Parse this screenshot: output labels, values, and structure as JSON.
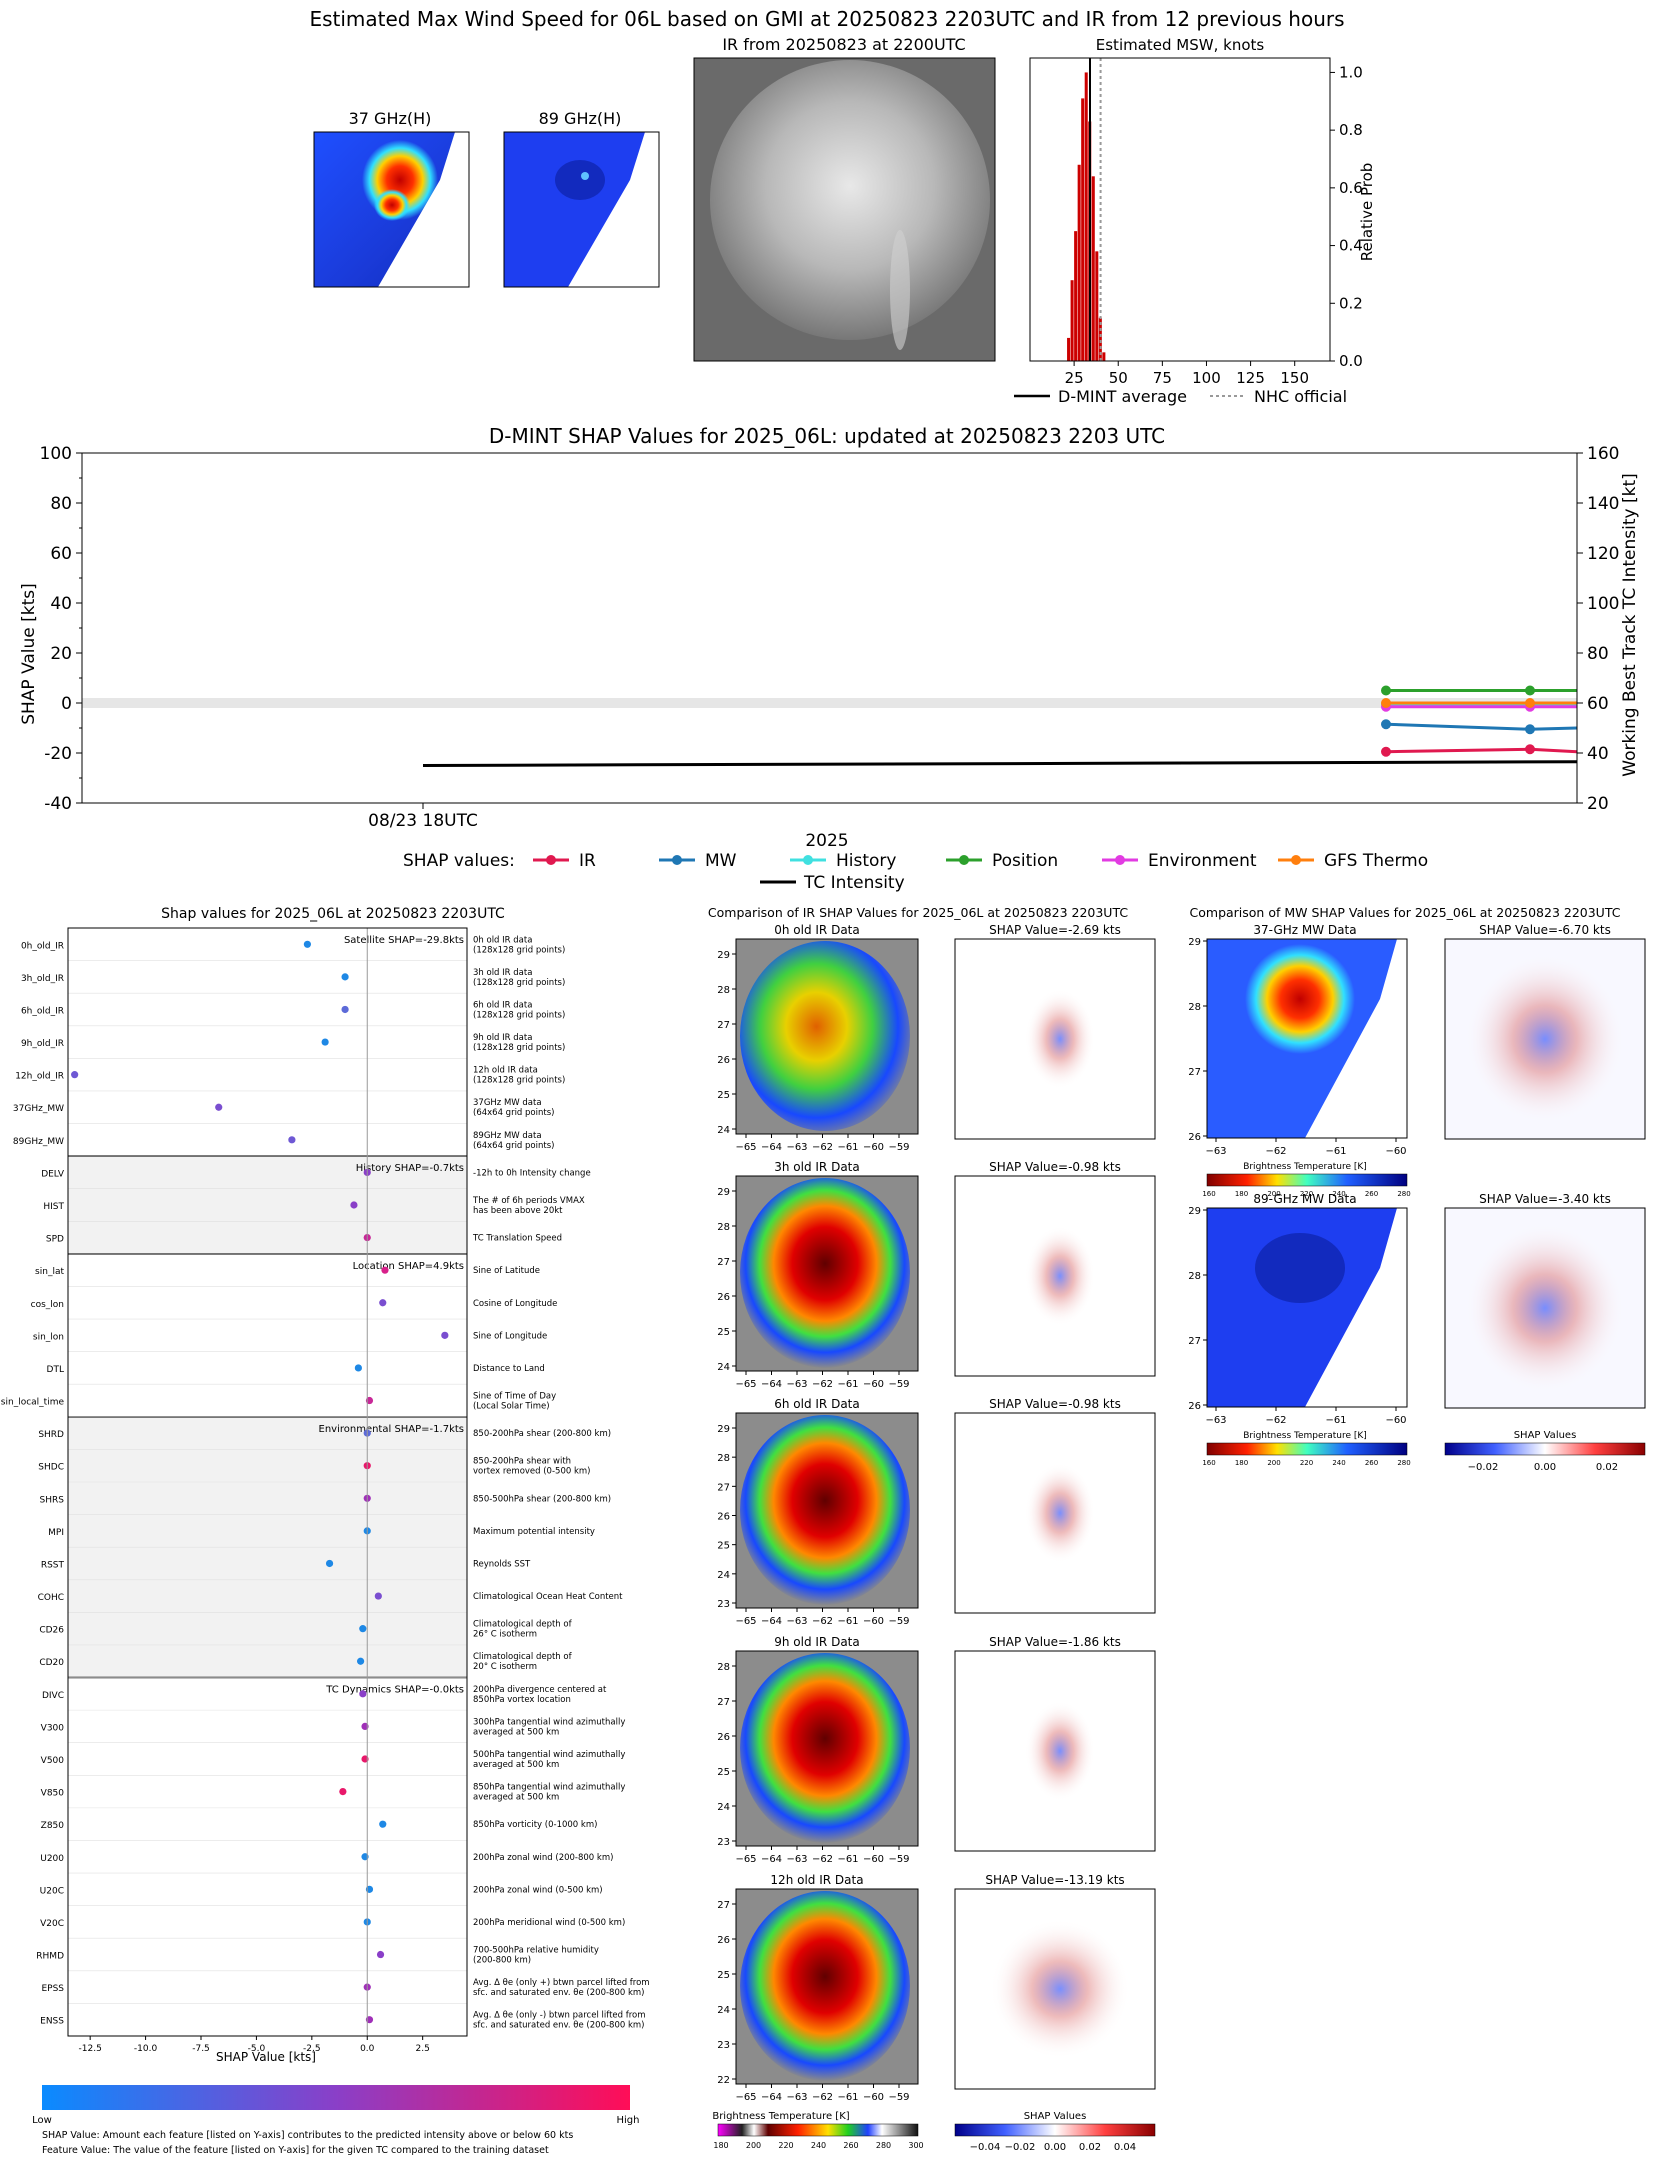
{
  "header": {
    "main_title": "Estimated Max Wind Speed for 06L based on GMI at 20250823 2203UTC and IR from 12 previous hours",
    "panel_37": "37 GHz(H)",
    "panel_89": "89 GHz(H)",
    "panel_ir": "IR from 20250823 at 2200UTC",
    "panel_msw": "Estimated MSW, knots"
  },
  "colors": {
    "ir": "#e0194f",
    "mw": "#1f77b4",
    "history": "#40e0e0",
    "position": "#2ca02c",
    "environment": "#e23be2",
    "gfs": "#ff7f0e",
    "intensity": "#000000",
    "histbar": "#cc0000"
  },
  "chart_data": [
    {
      "id": "msw",
      "type": "bar",
      "title": "Estimated MSW, knots",
      "ylabel": "Relative Prob",
      "xlim": [
        0,
        170
      ],
      "ylim": [
        0,
        1.05
      ],
      "xticks": [
        25,
        50,
        75,
        100,
        125,
        150
      ],
      "yticks": [
        0.0,
        0.2,
        0.4,
        0.6,
        0.8,
        1.0
      ],
      "bins": [
        {
          "x": 22,
          "y": 0.08
        },
        {
          "x": 24,
          "y": 0.28
        },
        {
          "x": 26,
          "y": 0.45
        },
        {
          "x": 28,
          "y": 0.68
        },
        {
          "x": 30,
          "y": 0.91
        },
        {
          "x": 32,
          "y": 1.0
        },
        {
          "x": 34,
          "y": 0.83
        },
        {
          "x": 36,
          "y": 0.64
        },
        {
          "x": 38,
          "y": 0.38
        },
        {
          "x": 40,
          "y": 0.15
        },
        {
          "x": 42,
          "y": 0.03
        }
      ],
      "dmint_average": 34,
      "nhc_official": 40,
      "legend": [
        "D-MINT average",
        "NHC official"
      ]
    },
    {
      "id": "shap_ts",
      "type": "line",
      "title": "D-MINT SHAP Values for 2025_06L: updated at 20250823 2203 UTC",
      "ylabel": "SHAP Value [kts]",
      "y2label": "Working Best Track TC Intensity [kt]",
      "xlabel": "2025",
      "xtick": "08/23 18UTC",
      "ylim": [
        -40,
        100
      ],
      "y2lim": [
        20,
        160
      ],
      "yticks": [
        -40,
        -20,
        0,
        20,
        40,
        60,
        80,
        100
      ],
      "y2ticks": [
        20,
        40,
        60,
        80,
        100,
        120,
        140,
        160
      ],
      "legend_title": "SHAP values:",
      "series": [
        {
          "name": "IR",
          "values": [
            -19.5,
            -18.5,
            -19.5
          ]
        },
        {
          "name": "MW",
          "values": [
            -8.5,
            -10.5,
            -10.0
          ]
        },
        {
          "name": "History",
          "values": [
            -0.5,
            -0.5,
            -0.5
          ]
        },
        {
          "name": "Position",
          "values": [
            5,
            5,
            5
          ]
        },
        {
          "name": "Environment",
          "values": [
            -1.5,
            -1.5,
            -1.5
          ]
        },
        {
          "name": "GFS Thermo",
          "values": [
            0,
            0,
            0
          ]
        }
      ],
      "intensity_label": "TC Intensity",
      "intensity_start": 35,
      "intensity_end": 36.5
    },
    {
      "id": "shap_features",
      "type": "scatter",
      "title": "Shap values for 2025_06L at 20250823 2203UTC",
      "xlabel": "SHAP Value [kts]",
      "xlim": [
        -13.5,
        4.5
      ],
      "xticks": [
        "-12.5",
        "-10.0",
        "-7.5",
        "-5.0",
        "-2.5",
        "0.0",
        "2.5"
      ],
      "colorbar_low": "Low",
      "colorbar_high": "High",
      "groups": [
        {
          "label": "Satellite SHAP=-29.8kts",
          "start": 0,
          "count": 7
        },
        {
          "label": "History SHAP=-0.7kts",
          "start": 7,
          "count": 3
        },
        {
          "label": "Location SHAP=4.9kts",
          "start": 10,
          "count": 5
        },
        {
          "label": "Environmental SHAP=-1.7kts",
          "start": 15,
          "count": 8
        },
        {
          "label": "TC Dynamics SHAP=-0.0kts",
          "start": 23,
          "count": 11
        }
      ],
      "features": [
        {
          "name": "0h_old_IR",
          "value": -2.7,
          "color": "#1e88e5",
          "desc": "0h old IR data\n(128x128 grid points)"
        },
        {
          "name": "3h_old_IR",
          "value": -1.0,
          "color": "#1e88e5",
          "desc": "3h old IR data\n(128x128 grid points)"
        },
        {
          "name": "6h_old_IR",
          "value": -1.0,
          "color": "#5c6ad8",
          "desc": "6h old IR data\n(128x128 grid points)"
        },
        {
          "name": "9h_old_IR",
          "value": -1.9,
          "color": "#1e88e5",
          "desc": "9h old IR data\n(128x128 grid points)"
        },
        {
          "name": "12h_old_IR",
          "value": -13.2,
          "color": "#6e58d4",
          "desc": "12h old IR data\n(128x128 grid points)"
        },
        {
          "name": "37GHz_MW",
          "value": -6.7,
          "color": "#7a4ed0",
          "desc": "37GHz MW data\n(64x64 grid points)"
        },
        {
          "name": "89GHz_MW",
          "value": -3.4,
          "color": "#6e58d4",
          "desc": "89GHz MW data\n(64x64 grid points)"
        },
        {
          "name": "DELV",
          "value": 0.0,
          "color": "#8a3fc8",
          "desc": "-12h to 0h Intensity change"
        },
        {
          "name": "HIST",
          "value": -0.6,
          "color": "#8a3fc8",
          "desc": "The # of 6h periods VMAX\nhas been above 20kt"
        },
        {
          "name": "SPD",
          "value": 0.0,
          "color": "#c82898",
          "desc": "TC Translation Speed"
        },
        {
          "name": "sin_lat",
          "value": 0.8,
          "color": "#d8208a",
          "desc": "Sine of Latitude"
        },
        {
          "name": "cos_lon",
          "value": 0.7,
          "color": "#7a4ed0",
          "desc": "Cosine of Longitude"
        },
        {
          "name": "sin_lon",
          "value": 3.5,
          "color": "#7a4ed0",
          "desc": "Sine of Longitude"
        },
        {
          "name": "DTL",
          "value": -0.4,
          "color": "#1e88e5",
          "desc": "Distance to Land"
        },
        {
          "name": "sin_local_time",
          "value": 0.1,
          "color": "#c82898",
          "desc": "Sine of Time of Day\n(Local Solar Time)"
        },
        {
          "name": "SHRD",
          "value": 0.0,
          "color": "#5c6ad8",
          "desc": "850-200hPa shear (200-800 km)"
        },
        {
          "name": "SHDC",
          "value": 0.0,
          "color": "#e8186a",
          "desc": "850-200hPa shear with\nvortex removed (0-500 km)"
        },
        {
          "name": "SHRS",
          "value": 0.0,
          "color": "#a030b8",
          "desc": "850-500hPa shear (200-800 km)"
        },
        {
          "name": "MPI",
          "value": 0.0,
          "color": "#1e88e5",
          "desc": "Maximum potential intensity"
        },
        {
          "name": "RSST",
          "value": -1.7,
          "color": "#1e88e5",
          "desc": "Reynolds SST"
        },
        {
          "name": "COHC",
          "value": 0.5,
          "color": "#7a4ed0",
          "desc": "Climatological Ocean Heat Content"
        },
        {
          "name": "CD26",
          "value": -0.2,
          "color": "#1e88e5",
          "desc": "Climatological depth of\n26° C isotherm"
        },
        {
          "name": "CD20",
          "value": -0.3,
          "color": "#1e88e5",
          "desc": "Climatological depth of\n20° C isotherm"
        },
        {
          "name": "DIVC",
          "value": -0.2,
          "color": "#8a3fc8",
          "desc": "200hPa divergence centered at\n850hPa vortex location"
        },
        {
          "name": "V300",
          "value": -0.1,
          "color": "#a030b8",
          "desc": "300hPa tangential wind azimuthally\naveraged at 500 km"
        },
        {
          "name": "V500",
          "value": -0.1,
          "color": "#e8186a",
          "desc": "500hPa tangential wind azimuthally\naveraged at 500 km"
        },
        {
          "name": "V850",
          "value": -1.1,
          "color": "#e8186a",
          "desc": "850hPa tangential wind azimuthally\naveraged at 500 km"
        },
        {
          "name": "Z850",
          "value": 0.7,
          "color": "#1e88e5",
          "desc": "850hPa vorticity (0-1000 km)"
        },
        {
          "name": "U200",
          "value": -0.1,
          "color": "#1e88e5",
          "desc": "200hPa zonal wind (200-800 km)"
        },
        {
          "name": "U20C",
          "value": 0.1,
          "color": "#1e88e5",
          "desc": "200hPa zonal wind (0-500 km)"
        },
        {
          "name": "V20C",
          "value": 0.0,
          "color": "#1e88e5",
          "desc": "200hPa meridional wind (0-500 km)"
        },
        {
          "name": "RHMD",
          "value": 0.6,
          "color": "#8a3fc8",
          "desc": "700-500hPa relative humidity\n(200-800 km)"
        },
        {
          "name": "EPSS",
          "value": 0.0,
          "color": "#a030b8",
          "desc": "Avg. Δ θe (only +) btwn parcel lifted from\nsfc. and saturated env. θe (200-800 km)"
        },
        {
          "name": "ENSS",
          "value": 0.1,
          "color": "#a030b8",
          "desc": "Avg. Δ θe (only -) btwn parcel lifted from\nsfc. and saturated env. θe (200-800 km)"
        }
      ],
      "footnote_1": "SHAP Value: Amount each feature [listed on Y-axis] contributes to the predicted intensity above or below 60 kts",
      "footnote_2": "Feature Value: The value of the feature [listed on Y-axis] for the given TC compared to the training dataset"
    }
  ],
  "ir_panel": {
    "title": "Comparison of IR SHAP Values for 2025_06L at 20250823 2203UTC",
    "rows": [
      {
        "img": "0h old IR Data",
        "shap": "SHAP Value=-2.69 kts",
        "yticks": [
          "29",
          "28",
          "27",
          "26",
          "25",
          "24"
        ]
      },
      {
        "img": "3h old IR Data",
        "shap": "SHAP Value=-0.98 kts",
        "yticks": [
          "29",
          "28",
          "27",
          "26",
          "25",
          "24"
        ]
      },
      {
        "img": "6h old IR Data",
        "shap": "SHAP Value=-0.98 kts",
        "yticks": [
          "29",
          "28",
          "27",
          "26",
          "25",
          "24",
          "23"
        ]
      },
      {
        "img": "9h old IR Data",
        "shap": "SHAP Value=-1.86 kts",
        "yticks": [
          "28",
          "27",
          "26",
          "25",
          "24",
          "23"
        ]
      },
      {
        "img": "12h old IR Data",
        "shap": "SHAP Value=-13.19 kts",
        "yticks": [
          "27",
          "26",
          "25",
          "24",
          "23",
          "22"
        ]
      }
    ],
    "xticks": [
      "−65",
      "−64",
      "−63",
      "−62",
      "−61",
      "−60",
      "−59"
    ],
    "cb_label": "Brightness Temperature [K]",
    "cb_ticks": [
      "180",
      "200",
      "220",
      "240",
      "260",
      "280",
      "300"
    ],
    "shap_cb_label": "SHAP Values",
    "shap_cb_ticks": [
      "−0.04",
      "−0.02",
      "0.00",
      "0.02",
      "0.04"
    ]
  },
  "mw_panel": {
    "title": "Comparison of MW SHAP Values for 2025_06L at 20250823 2203UTC",
    "rows": [
      {
        "img": "37-GHz MW Data",
        "shap": "SHAP Value=-6.70 kts"
      },
      {
        "img": "89-GHz MW Data",
        "shap": "SHAP Value=-3.40 kts"
      }
    ],
    "yticks": [
      "29",
      "28",
      "27",
      "26"
    ],
    "xticks": [
      "−63",
      "−62",
      "−61",
      "−60"
    ],
    "cb_label": "Brightness Temperature [K]",
    "cb_ticks": [
      "160",
      "180",
      "200",
      "220",
      "240",
      "260",
      "280"
    ],
    "shap_cb_label": "SHAP Values",
    "shap_cb_ticks": [
      "−0.02",
      "0.00",
      "0.02"
    ]
  }
}
